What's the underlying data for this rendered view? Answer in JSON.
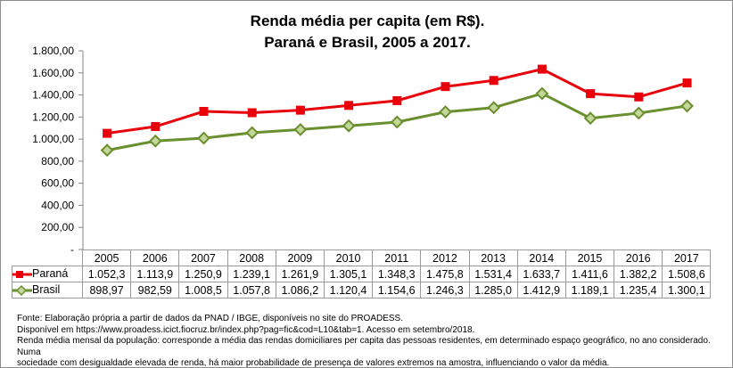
{
  "chart_data": {
    "type": "line",
    "title": [
      "Renda média per capita (em R$).",
      "Paraná e Brasil, 2005 a 2017."
    ],
    "categories": [
      "2005",
      "2006",
      "2007",
      "2008",
      "2009",
      "2010",
      "2011",
      "2012",
      "2013",
      "2014",
      "2015",
      "2016",
      "2017"
    ],
    "ylim": [
      0,
      1800
    ],
    "yticks": [
      "-",
      "200,00",
      "400,00",
      "600,00",
      "800,00",
      "1.000,00",
      "1.200,00",
      "1.400,00",
      "1.600,00",
      "1.800,00"
    ],
    "grid": false,
    "legend": "data-table",
    "series": [
      {
        "name": "Paraná",
        "color": "#e8000b",
        "marker": "square",
        "values": [
          1052.3,
          1113.9,
          1250.9,
          1239.1,
          1261.9,
          1305.1,
          1348.3,
          1475.8,
          1531.4,
          1633.7,
          1411.6,
          1382.2,
          1508.6
        ],
        "labels": [
          "1.052,3",
          "1.113,9",
          "1.250,9",
          "1.239,1",
          "1.261,9",
          "1.305,1",
          "1.348,3",
          "1.475,8",
          "1.531,4",
          "1.633,7",
          "1.411,6",
          "1.382,2",
          "1.508,6"
        ]
      },
      {
        "name": "Brasil",
        "color": "#6a8f2e",
        "marker": "diamond",
        "values": [
          898.97,
          982.59,
          1008.5,
          1057.8,
          1086.2,
          1120.4,
          1154.6,
          1246.3,
          1285.0,
          1412.9,
          1189.1,
          1235.4,
          1300.1
        ],
        "labels": [
          "898,97",
          "982,59",
          "1.008,5",
          "1.057,8",
          "1.086,2",
          "1.120,4",
          "1.154,6",
          "1.246,3",
          "1.285,0",
          "1.412,9",
          "1.189,1",
          "1.235,4",
          "1.300,1"
        ]
      }
    ]
  },
  "notes": [
    "Fonte: Elaboração própria a partir de dados da PNAD / IBGE, disponíveis no site do PROADESS.",
    "Disponível em https://www.proadess.icict.fiocruz.br/index.php?pag=fic&cod=L10&tab=1. Acesso em setembro/2018.",
    "Renda média mensal da população: corresponde a média das rendas domiciliares per capita das pessoas residentes, em determinado espaço geográfico, no ano considerado. Numa",
    "sociedade com desigualdade elevada de renda, há maior probabilidade de presença de valores extremos na amostra, influenciando o valor da média."
  ]
}
